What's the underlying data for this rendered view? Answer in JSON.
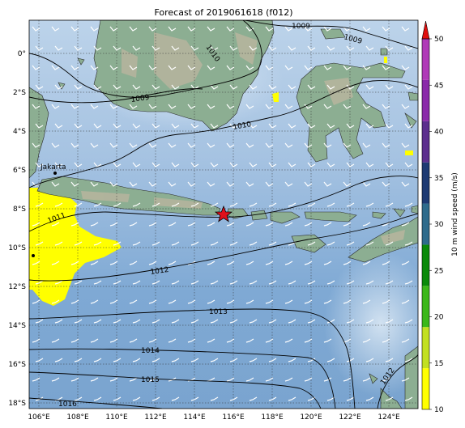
{
  "title": "Forecast of 2019061618 (f012)",
  "lon_ticks": [
    "106°E",
    "108°E",
    "110°E",
    "112°E",
    "114°E",
    "116°E",
    "118°E",
    "120°E",
    "122°E",
    "124°E"
  ],
  "lat_ticks": [
    "0°",
    "2°S",
    "4°S",
    "6°S",
    "8°S",
    "10°S",
    "12°S",
    "14°S",
    "16°S",
    "18°S"
  ],
  "isobar_labels": [
    "1009",
    "1009",
    "1010",
    "1010",
    "1009",
    "1011",
    "1012",
    "1013",
    "1014",
    "1015",
    "1016",
    "1012"
  ],
  "city_label": "Jakarta",
  "colorbar": {
    "label": "10 m wind speed (m/s)",
    "ticks": [
      "10",
      "15",
      "20",
      "25",
      "30",
      "35",
      "40",
      "45",
      "50"
    ],
    "colors": [
      "#ffff00",
      "#c2e020",
      "#3cb81a",
      "#0a8a0a",
      "#2e6b8c",
      "#1d3a73",
      "#5c2f8e",
      "#8a2aaa",
      "#b03ab8"
    ],
    "extend_color": "#e01010"
  },
  "legend_colors": {
    "sea": "#a9c6e4",
    "deep_sea": "#6e9fcf",
    "land": "#8cae92",
    "high_wind": "#ffff00",
    "marker": "#e0101a"
  },
  "marker_icon": "star"
}
